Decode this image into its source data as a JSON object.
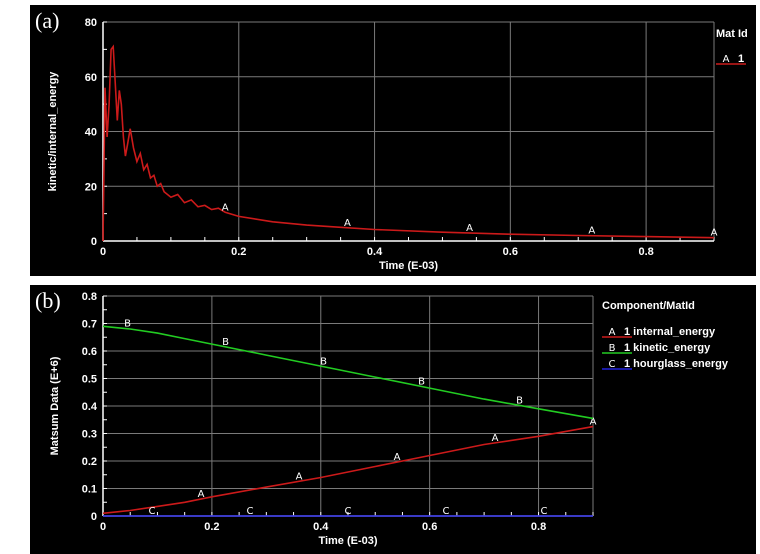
{
  "panels": {
    "a_label": "(a)",
    "b_label": "(b)"
  },
  "chart_data": [
    {
      "type": "line",
      "xlabel": "Time (E-03)",
      "ylabel": "kinetic/internal_energy",
      "xlim": [
        0,
        0.9
      ],
      "ylim": [
        0,
        80
      ],
      "x_ticks": [
        "0",
        "0.2",
        "0.4",
        "0.6",
        "0.8"
      ],
      "y_ticks": [
        "0",
        "20",
        "40",
        "60",
        "80"
      ],
      "grid": true,
      "legend_title": "Mat Id",
      "legend_position": "right",
      "series": [
        {
          "name": "1",
          "marker": "A",
          "color": "#cc1a1a",
          "x": [
            0,
            0.003,
            0.006,
            0.009,
            0.012,
            0.015,
            0.018,
            0.021,
            0.024,
            0.027,
            0.03,
            0.033,
            0.036,
            0.04,
            0.045,
            0.05,
            0.055,
            0.06,
            0.065,
            0.07,
            0.075,
            0.08,
            0.085,
            0.09,
            0.1,
            0.11,
            0.12,
            0.13,
            0.14,
            0.15,
            0.16,
            0.17,
            0.18,
            0.2,
            0.25,
            0.3,
            0.35,
            0.4,
            0.5,
            0.6,
            0.7,
            0.8,
            0.9
          ],
          "y": [
            0,
            56,
            38,
            50,
            70,
            71,
            58,
            44,
            55,
            50,
            38,
            31,
            35,
            41,
            34,
            29,
            32,
            26,
            28,
            23,
            24,
            20,
            21,
            18,
            16,
            17,
            14,
            15,
            12.5,
            13,
            11.5,
            12,
            10.5,
            9,
            7,
            5.8,
            5,
            4.2,
            3.2,
            2.5,
            2,
            1.6,
            1.2
          ],
          "marker_x": [
            0.18,
            0.36,
            0.54,
            0.72,
            0.9
          ]
        }
      ]
    },
    {
      "type": "line",
      "xlabel": "Time (E-03)",
      "ylabel": "Matsum Data (E+6)",
      "xlim": [
        0,
        0.9
      ],
      "ylim": [
        0,
        0.8
      ],
      "x_ticks": [
        "0",
        "0.2",
        "0.4",
        "0.6",
        "0.8"
      ],
      "y_ticks": [
        "0",
        "0.1",
        "0.2",
        "0.3",
        "0.4",
        "0.5",
        "0.6",
        "0.7",
        "0.8"
      ],
      "grid": true,
      "legend_title": "Component/MatId",
      "legend_position": "right",
      "series": [
        {
          "name": "1 internal_energy",
          "marker": "A",
          "color": "#cc1a1a",
          "x": [
            0,
            0.05,
            0.1,
            0.15,
            0.2,
            0.3,
            0.4,
            0.5,
            0.6,
            0.7,
            0.8,
            0.9
          ],
          "y": [
            0.01,
            0.02,
            0.035,
            0.05,
            0.07,
            0.105,
            0.14,
            0.18,
            0.22,
            0.26,
            0.29,
            0.325
          ],
          "marker_x": [
            0.18,
            0.36,
            0.54,
            0.72,
            0.9
          ]
        },
        {
          "name": "1 kinetic_energy",
          "marker": "B",
          "color": "#22cc22",
          "x": [
            0,
            0.05,
            0.1,
            0.15,
            0.2,
            0.3,
            0.4,
            0.5,
            0.6,
            0.7,
            0.8,
            0.9
          ],
          "y": [
            0.69,
            0.68,
            0.665,
            0.645,
            0.625,
            0.585,
            0.545,
            0.505,
            0.465,
            0.425,
            0.39,
            0.355
          ],
          "marker_x": [
            0.045,
            0.225,
            0.405,
            0.585,
            0.765
          ]
        },
        {
          "name": "1 hourglass_energy",
          "marker": "C",
          "color": "#2222dd",
          "x": [
            0,
            0.9
          ],
          "y": [
            0,
            0
          ],
          "marker_x": [
            0.09,
            0.27,
            0.45,
            0.63,
            0.81
          ]
        }
      ]
    }
  ]
}
